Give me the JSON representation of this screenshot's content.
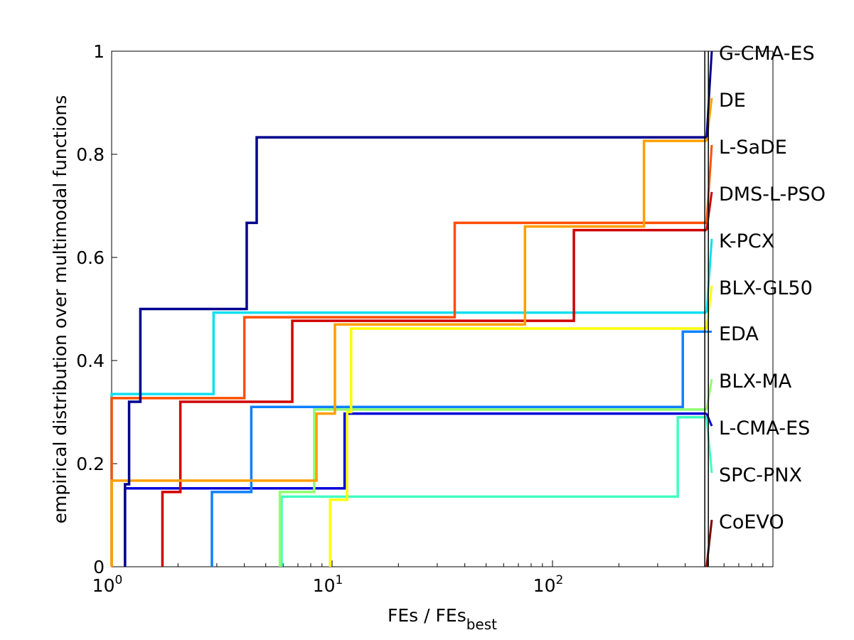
{
  "chart_data": {
    "type": "line",
    "xscale": "log",
    "xlim": [
      1,
      1000
    ],
    "ylim": [
      0,
      1
    ],
    "grid": false,
    "legend_placement": "right",
    "xlabel": "FEs / FEs",
    "xlabel_sub": "best",
    "ylabel": "empirical distribution over multimodal functions",
    "x_ticks": [
      {
        "value": 1,
        "base": "10",
        "exp": "0"
      },
      {
        "value": 10,
        "base": "10",
        "exp": "1"
      },
      {
        "value": 100,
        "base": "10",
        "exp": "2"
      }
    ],
    "y_ticks": [
      "0",
      "0.2",
      "0.4",
      "0.6",
      "0.8",
      "1"
    ],
    "max_budget_x": 500,
    "series": [
      {
        "name": "G-CMA-ES",
        "color": "#00008f",
        "final": 0.833,
        "legend_y": 1.0,
        "steps": [
          [
            1.15,
            0.16
          ],
          [
            1.2,
            0.32
          ],
          [
            1.35,
            0.5
          ],
          [
            4.1,
            0.667
          ],
          [
            4.55,
            0.833
          ]
        ]
      },
      {
        "name": "DE",
        "color": "#ff9f00",
        "final": 0.826,
        "legend_y": 0.909,
        "steps": [
          [
            1,
            0.167
          ],
          [
            8.5,
            0.297
          ],
          [
            10.3,
            0.47
          ],
          [
            75,
            0.66
          ],
          [
            260,
            0.826
          ]
        ]
      },
      {
        "name": "L-SaDE",
        "color": "#ff4f00",
        "final": 0.667,
        "legend_y": 0.818,
        "steps": [
          [
            1,
            0.327
          ],
          [
            4,
            0.484
          ],
          [
            36,
            0.667
          ]
        ]
      },
      {
        "name": "DMS-L-PSO",
        "color": "#cf0000",
        "final": 0.653,
        "legend_y": 0.727,
        "steps": [
          [
            1.7,
            0.145
          ],
          [
            2.05,
            0.32
          ],
          [
            6.6,
            0.477
          ],
          [
            125,
            0.653
          ]
        ]
      },
      {
        "name": "K-PCX",
        "color": "#10dfef",
        "final": 0.493,
        "legend_y": 0.636,
        "steps": [
          [
            1,
            0.335
          ],
          [
            2.9,
            0.493
          ]
        ]
      },
      {
        "name": "BLX-GL50",
        "color": "#ffff00",
        "final": 0.462,
        "legend_y": 0.545,
        "steps": [
          [
            9.8,
            0.13
          ],
          [
            11.7,
            0.3
          ],
          [
            12.2,
            0.462
          ]
        ]
      },
      {
        "name": "EDA",
        "color": "#0f7fff",
        "final": 0.456,
        "legend_y": 0.456,
        "steps": [
          [
            2.85,
            0.145
          ],
          [
            4.3,
            0.31
          ],
          [
            390,
            0.456
          ]
        ]
      },
      {
        "name": "BLX-MA",
        "color": "#8fff6f",
        "final": 0.305,
        "legend_y": 0.364,
        "steps": [
          [
            5.8,
            0.145
          ],
          [
            8.3,
            0.305
          ]
        ]
      },
      {
        "name": "L-CMA-ES",
        "color": "#0000d8",
        "final": 0.297,
        "legend_y": 0.273,
        "steps": [
          [
            1.15,
            0.152
          ],
          [
            11.4,
            0.297
          ]
        ]
      },
      {
        "name": "SPC-PNX",
        "color": "#40ffbf",
        "final": 0.29,
        "legend_y": 0.182,
        "steps": [
          [
            5.9,
            0.136
          ],
          [
            370,
            0.29
          ]
        ]
      },
      {
        "name": "CoEVO",
        "color": "#7f0000",
        "final": 0.0,
        "legend_y": 0.091,
        "steps": []
      }
    ]
  }
}
